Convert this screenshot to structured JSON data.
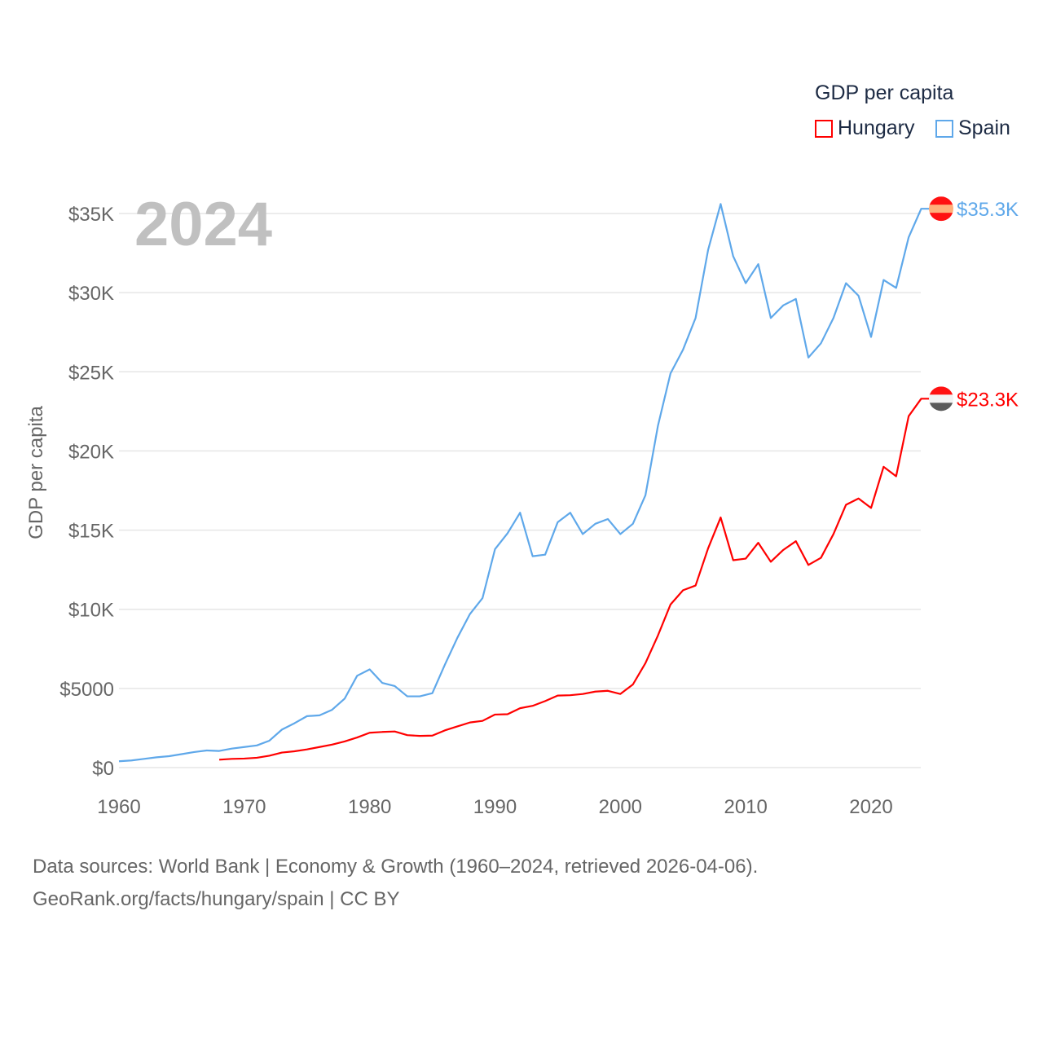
{
  "chart_data": {
    "type": "line",
    "title": "GDP per capita",
    "ylabel": "GDP per capita",
    "xlabel": "",
    "year_label": "2024",
    "xlim": [
      1960,
      2024
    ],
    "ylim": [
      0,
      35000
    ],
    "x_ticks": [
      1960,
      1970,
      1980,
      1990,
      2000,
      2010,
      2020
    ],
    "y_ticks": [
      0,
      5000,
      10000,
      15000,
      20000,
      25000,
      30000,
      35000
    ],
    "y_tick_labels": [
      "$0",
      "$5000",
      "$10K",
      "$15K",
      "$20K",
      "$25K",
      "$30K",
      "$35K"
    ],
    "grid": true,
    "legend_placement": "top-right",
    "series": [
      {
        "name": "Hungary",
        "color": "#ff0000",
        "start_year": 1968,
        "end_label": "$23.3K",
        "values": [
          500,
          550,
          570,
          620,
          750,
          950,
          1030,
          1150,
          1300,
          1450,
          1650,
          1900,
          2200,
          2250,
          2280,
          2050,
          2000,
          2020,
          2350,
          2600,
          2850,
          2950,
          3350,
          3370,
          3750,
          3900,
          4200,
          4550,
          4570,
          4650,
          4800,
          4850,
          4650,
          5250,
          6600,
          8350,
          10300,
          11200,
          11500,
          13850,
          15800,
          13100,
          13200,
          14200,
          13000,
          13750,
          14300,
          12800,
          13250,
          14750,
          16600,
          17000,
          16400,
          19000,
          18400,
          22200,
          23300
        ]
      },
      {
        "name": "Spain",
        "color": "#5fa8ea",
        "start_year": 1960,
        "end_label": "$35.3K",
        "values": [
          400,
          450,
          550,
          650,
          720,
          850,
          980,
          1080,
          1050,
          1200,
          1300,
          1400,
          1700,
          2400,
          2800,
          3250,
          3300,
          3650,
          4350,
          5800,
          6200,
          5350,
          5150,
          4500,
          4500,
          4700,
          6500,
          8200,
          9700,
          10700,
          13800,
          14800,
          16100,
          13350,
          13450,
          15500,
          16100,
          14750,
          15400,
          15700,
          14750,
          15400,
          17200,
          21600,
          24900,
          26400,
          28400,
          32700,
          35600,
          32300,
          30600,
          31800,
          28400,
          29200,
          29600,
          25900,
          26800,
          28400,
          30600,
          29800,
          27200,
          30800,
          30300,
          33500,
          35300
        ]
      }
    ]
  },
  "footer": {
    "line1": "Data sources: World Bank | Economy & Growth (1960–2024, retrieved 2026-04-06).",
    "line2": "GeoRank.org/facts/hungary/spain | CC BY"
  }
}
